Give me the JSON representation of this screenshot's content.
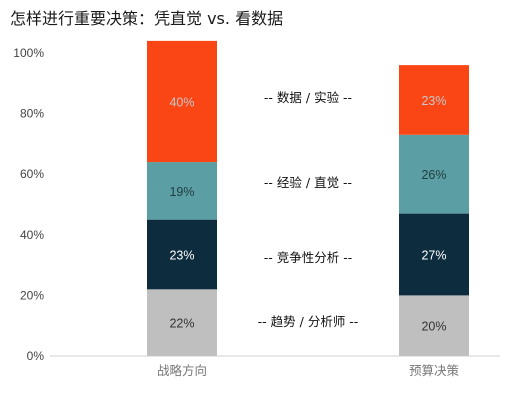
{
  "chart_data": {
    "type": "bar",
    "stacked": true,
    "title": "怎样进行重要决策：凭直觉 vs. 看数据",
    "categories": [
      "战略方向",
      "预算决策"
    ],
    "y_ticks": [
      "0%",
      "20%",
      "40%",
      "60%",
      "80%",
      "100%"
    ],
    "ylim": [
      0,
      100
    ],
    "grid": false,
    "series": [
      {
        "name": "趋势 / 分析师",
        "values": [
          22,
          20
        ],
        "labels": [
          "22%",
          "20%"
        ],
        "color": "#bfbfbf",
        "text_color": "#333333"
      },
      {
        "name": "竞争性分析",
        "values": [
          23,
          27
        ],
        "labels": [
          "23%",
          "27%"
        ],
        "color": "#0d2d3f",
        "text_color": "#ffffff"
      },
      {
        "name": "经验 / 直觉",
        "values": [
          19,
          26
        ],
        "labels": [
          "19%",
          "26%"
        ],
        "color": "#5b9ea4",
        "text_color": "#1f3d44"
      },
      {
        "name": "数据 / 实验",
        "values": [
          40,
          23
        ],
        "labels": [
          "40%",
          "23%"
        ],
        "color": "#fa4514",
        "text_color": "#c9c9c9"
      }
    ],
    "annotations": [
      "-- 趋势 / 分析师 --",
      "-- 竞争性分析 --",
      "-- 经验 / 直觉 --",
      "-- 数据 / 实验 --"
    ]
  }
}
